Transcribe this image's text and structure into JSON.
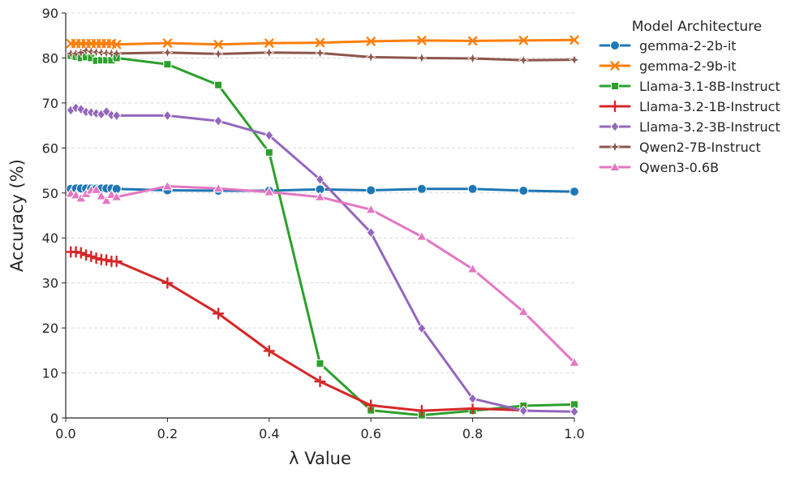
{
  "chart_data": {
    "type": "line",
    "xlabel": "λ Value",
    "ylabel": "Accuracy (%)",
    "xlim": [
      0.0,
      1.0
    ],
    "ylim": [
      0,
      90
    ],
    "xticks": [
      "0.0",
      "0.2",
      "0.4",
      "0.6",
      "0.8",
      "1.0"
    ],
    "yticks": [
      "0",
      "10",
      "20",
      "30",
      "40",
      "50",
      "60",
      "70",
      "80",
      "90"
    ],
    "grid": "horizontal-dashed",
    "legend": {
      "title": "Model Architecture",
      "placement": "outside-right-top"
    },
    "x": [
      0.01,
      0.02,
      0.03,
      0.04,
      0.05,
      0.06,
      0.07,
      0.08,
      0.09,
      0.1,
      0.2,
      0.3,
      0.4,
      0.5,
      0.6,
      0.7,
      0.8,
      0.9,
      1.0
    ],
    "series": [
      {
        "name": "gemma-2-2b-it",
        "color": "#1f77b4",
        "marker": "circle",
        "values": [
          50.9,
          51.0,
          51.0,
          51.0,
          51.0,
          51.0,
          51.0,
          51.0,
          51.0,
          50.9,
          50.6,
          50.5,
          50.5,
          50.8,
          50.6,
          50.9,
          50.9,
          50.5,
          50.3
        ]
      },
      {
        "name": "gemma-2-9b-it",
        "color": "#ff7f0e",
        "marker": "x",
        "values": [
          83.2,
          83.2,
          83.2,
          83.2,
          83.2,
          83.2,
          83.2,
          83.2,
          83.2,
          83.0,
          83.3,
          83.0,
          83.3,
          83.4,
          83.7,
          83.9,
          83.8,
          83.9,
          84.0
        ]
      },
      {
        "name": "Llama-3.1-8B-Instruct",
        "color": "#2ca02c",
        "marker": "square",
        "values": [
          80.5,
          80.3,
          80.0,
          80.2,
          80.0,
          79.4,
          79.5,
          79.5,
          79.5,
          80.0,
          78.6,
          74.0,
          59.0,
          12.1,
          1.7,
          0.6,
          1.6,
          2.7,
          3.0
        ]
      },
      {
        "name": "Llama-3.2-1B-Instruct",
        "color": "#d62728",
        "marker": "plus",
        "values": [
          36.9,
          36.9,
          36.7,
          36.2,
          35.9,
          35.5,
          35.2,
          35.1,
          34.8,
          34.8,
          30.0,
          23.2,
          14.9,
          8.1,
          2.8,
          1.6,
          2.1,
          1.7,
          null
        ]
      },
      {
        "name": "Llama-3.2-3B-Instruct",
        "color": "#9467bd",
        "marker": "diamond",
        "values": [
          68.4,
          68.9,
          68.6,
          68.0,
          67.9,
          67.7,
          67.5,
          68.1,
          67.3,
          67.2,
          67.2,
          66.0,
          62.8,
          53.0,
          41.2,
          19.9,
          4.3,
          1.6,
          1.4
        ]
      },
      {
        "name": "Qwen2-7B-Instruct",
        "color": "#8c564b",
        "marker": "star",
        "values": [
          81.0,
          81.0,
          81.2,
          81.6,
          81.4,
          81.3,
          81.2,
          81.1,
          81.0,
          81.0,
          81.2,
          80.9,
          81.2,
          81.1,
          80.2,
          80.0,
          79.9,
          79.5,
          79.6
        ]
      },
      {
        "name": "Qwen3-0.6B",
        "color": "#e377c2",
        "marker": "triangle",
        "values": [
          49.9,
          49.5,
          48.8,
          49.8,
          50.6,
          50.7,
          49.3,
          48.3,
          49.6,
          49.1,
          51.5,
          51.0,
          50.2,
          49.1,
          46.3,
          40.3,
          33.1,
          23.6,
          12.3
        ]
      }
    ]
  }
}
